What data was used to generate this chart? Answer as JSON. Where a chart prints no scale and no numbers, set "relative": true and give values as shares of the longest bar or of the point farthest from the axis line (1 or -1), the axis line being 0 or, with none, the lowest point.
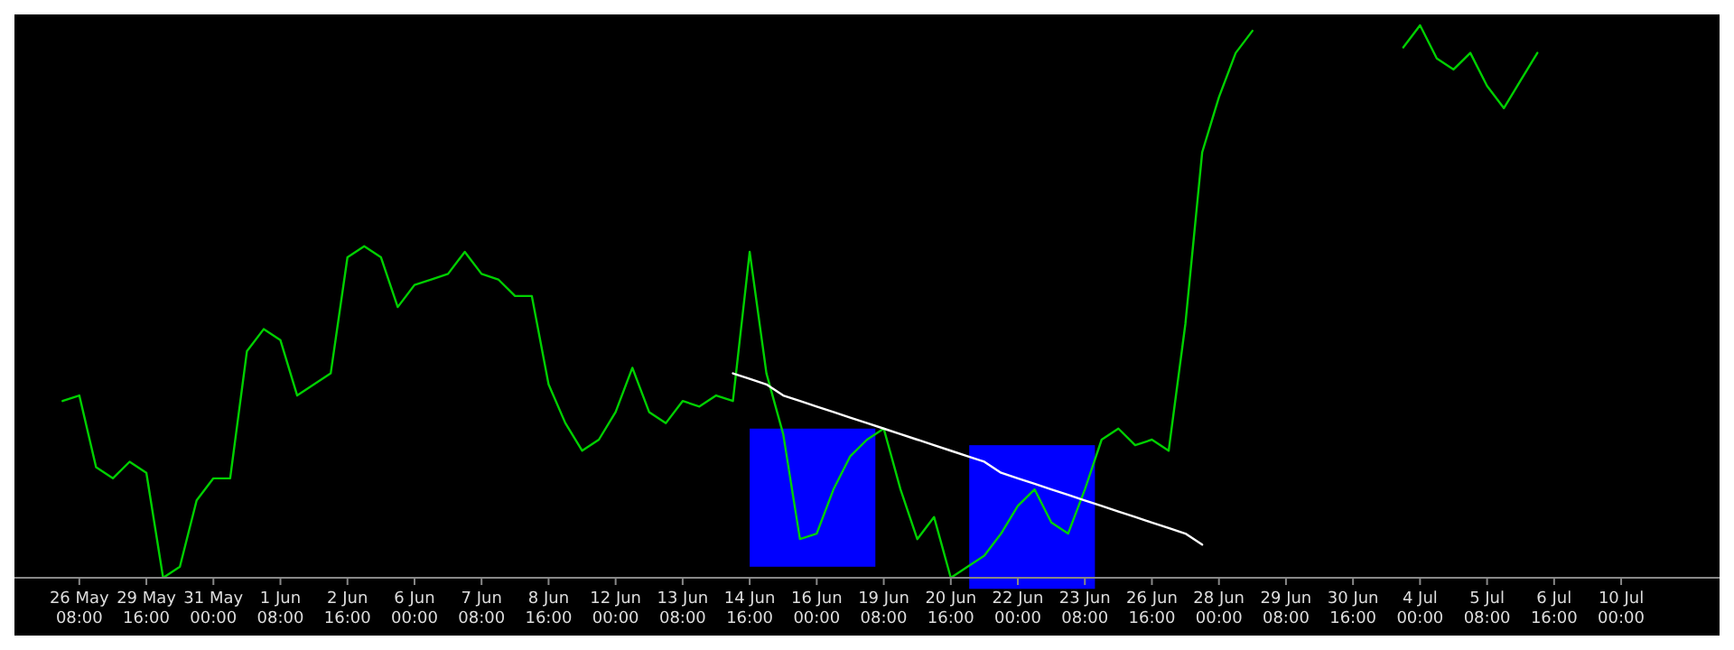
{
  "chart_data": {
    "type": "line",
    "relative": true,
    "grid": false,
    "categories": [
      null,
      "26 May 08:00",
      null,
      null,
      null,
      "29 May 16:00",
      null,
      null,
      null,
      "31 May 00:00",
      null,
      null,
      null,
      "1 Jun 08:00",
      null,
      null,
      null,
      "2 Jun 16:00",
      null,
      null,
      null,
      "6 Jun 00:00",
      null,
      null,
      null,
      "7 Jun 08:00",
      null,
      null,
      null,
      "8 Jun 16:00",
      null,
      null,
      null,
      "12 Jun 00:00",
      null,
      null,
      null,
      "13 Jun 08:00",
      null,
      null,
      null,
      "14 Jun 16:00",
      null,
      null,
      null,
      "16 Jun 00:00",
      null,
      null,
      null,
      "19 Jun 08:00",
      null,
      null,
      null,
      "20 Jun 16:00",
      null,
      null,
      null,
      "22 Jun 00:00",
      null,
      null,
      null,
      "23 Jun 08:00",
      null,
      null,
      null,
      "26 Jun 16:00",
      null,
      null,
      null,
      "28 Jun 00:00",
      null,
      null,
      null,
      "29 Jun 08:00",
      null,
      null,
      null,
      "30 Jun 16:00",
      null,
      null,
      null,
      "4 Jul 00:00",
      null,
      null,
      null,
      "5 Jul 08:00",
      null,
      null,
      null,
      "6 Jul 16:00",
      null,
      null,
      null,
      "10 Jul 00:00",
      null,
      null,
      null
    ],
    "series": [
      {
        "color": "#00d000",
        "line_style": "solid",
        "values": [
          0.32,
          0.33,
          0.2,
          0.18,
          0.21,
          0.19,
          0,
          0.02,
          0.14,
          0.18,
          0.18,
          0.41,
          0.45,
          0.43,
          0.33,
          0.35,
          0.37,
          0.58,
          0.6,
          0.58,
          0.49,
          0.53,
          0.54,
          0.55,
          0.59,
          0.55,
          0.54,
          0.51,
          0.51,
          0.35,
          0.28,
          0.23,
          0.25,
          0.3,
          0.38,
          0.3,
          0.28,
          0.32,
          0.31,
          0.33,
          0.32,
          0.59,
          0.37,
          0.26,
          0.07,
          0.08,
          0.16,
          0.22,
          0.25,
          0.27,
          0.16,
          0.07,
          0.11,
          0,
          0.02,
          0.04,
          0.08,
          0.13,
          0.16,
          0.1,
          0.08,
          0.16,
          0.25,
          0.27,
          0.24,
          0.25,
          0.23,
          0.46,
          0.77,
          0.87,
          0.95,
          0.99,
          null,
          null,
          null,
          null,
          null,
          null,
          null,
          null,
          0.96,
          1,
          0.94,
          0.92,
          0.95,
          0.89,
          0.85,
          0.9,
          0.95,
          null,
          null,
          null,
          null,
          null,
          null,
          null,
          null
        ]
      },
      {
        "color": "#ffffff",
        "line_style": "solid",
        "values": [
          null,
          null,
          null,
          null,
          null,
          null,
          null,
          null,
          null,
          null,
          null,
          null,
          null,
          null,
          null,
          null,
          null,
          null,
          null,
          null,
          null,
          null,
          null,
          null,
          null,
          null,
          null,
          null,
          null,
          null,
          null,
          null,
          null,
          null,
          null,
          null,
          null,
          null,
          null,
          null,
          0.37,
          0.36,
          0.35,
          0.33,
          0.32,
          0.31,
          0.3,
          0.29,
          0.28,
          0.27,
          0.26,
          0.25,
          0.24,
          0.23,
          0.22,
          0.21,
          0.19,
          0.18,
          0.17,
          0.16,
          0.15,
          0.14,
          0.13,
          0.12,
          0.11,
          0.1,
          0.09,
          0.08,
          0.06,
          null,
          null,
          null,
          null,
          null,
          null,
          null,
          null,
          null,
          null,
          null,
          null,
          null,
          null,
          null,
          null,
          null,
          null,
          null,
          null,
          null,
          null,
          null,
          null,
          null,
          null,
          null,
          null
        ]
      }
    ]
  }
}
